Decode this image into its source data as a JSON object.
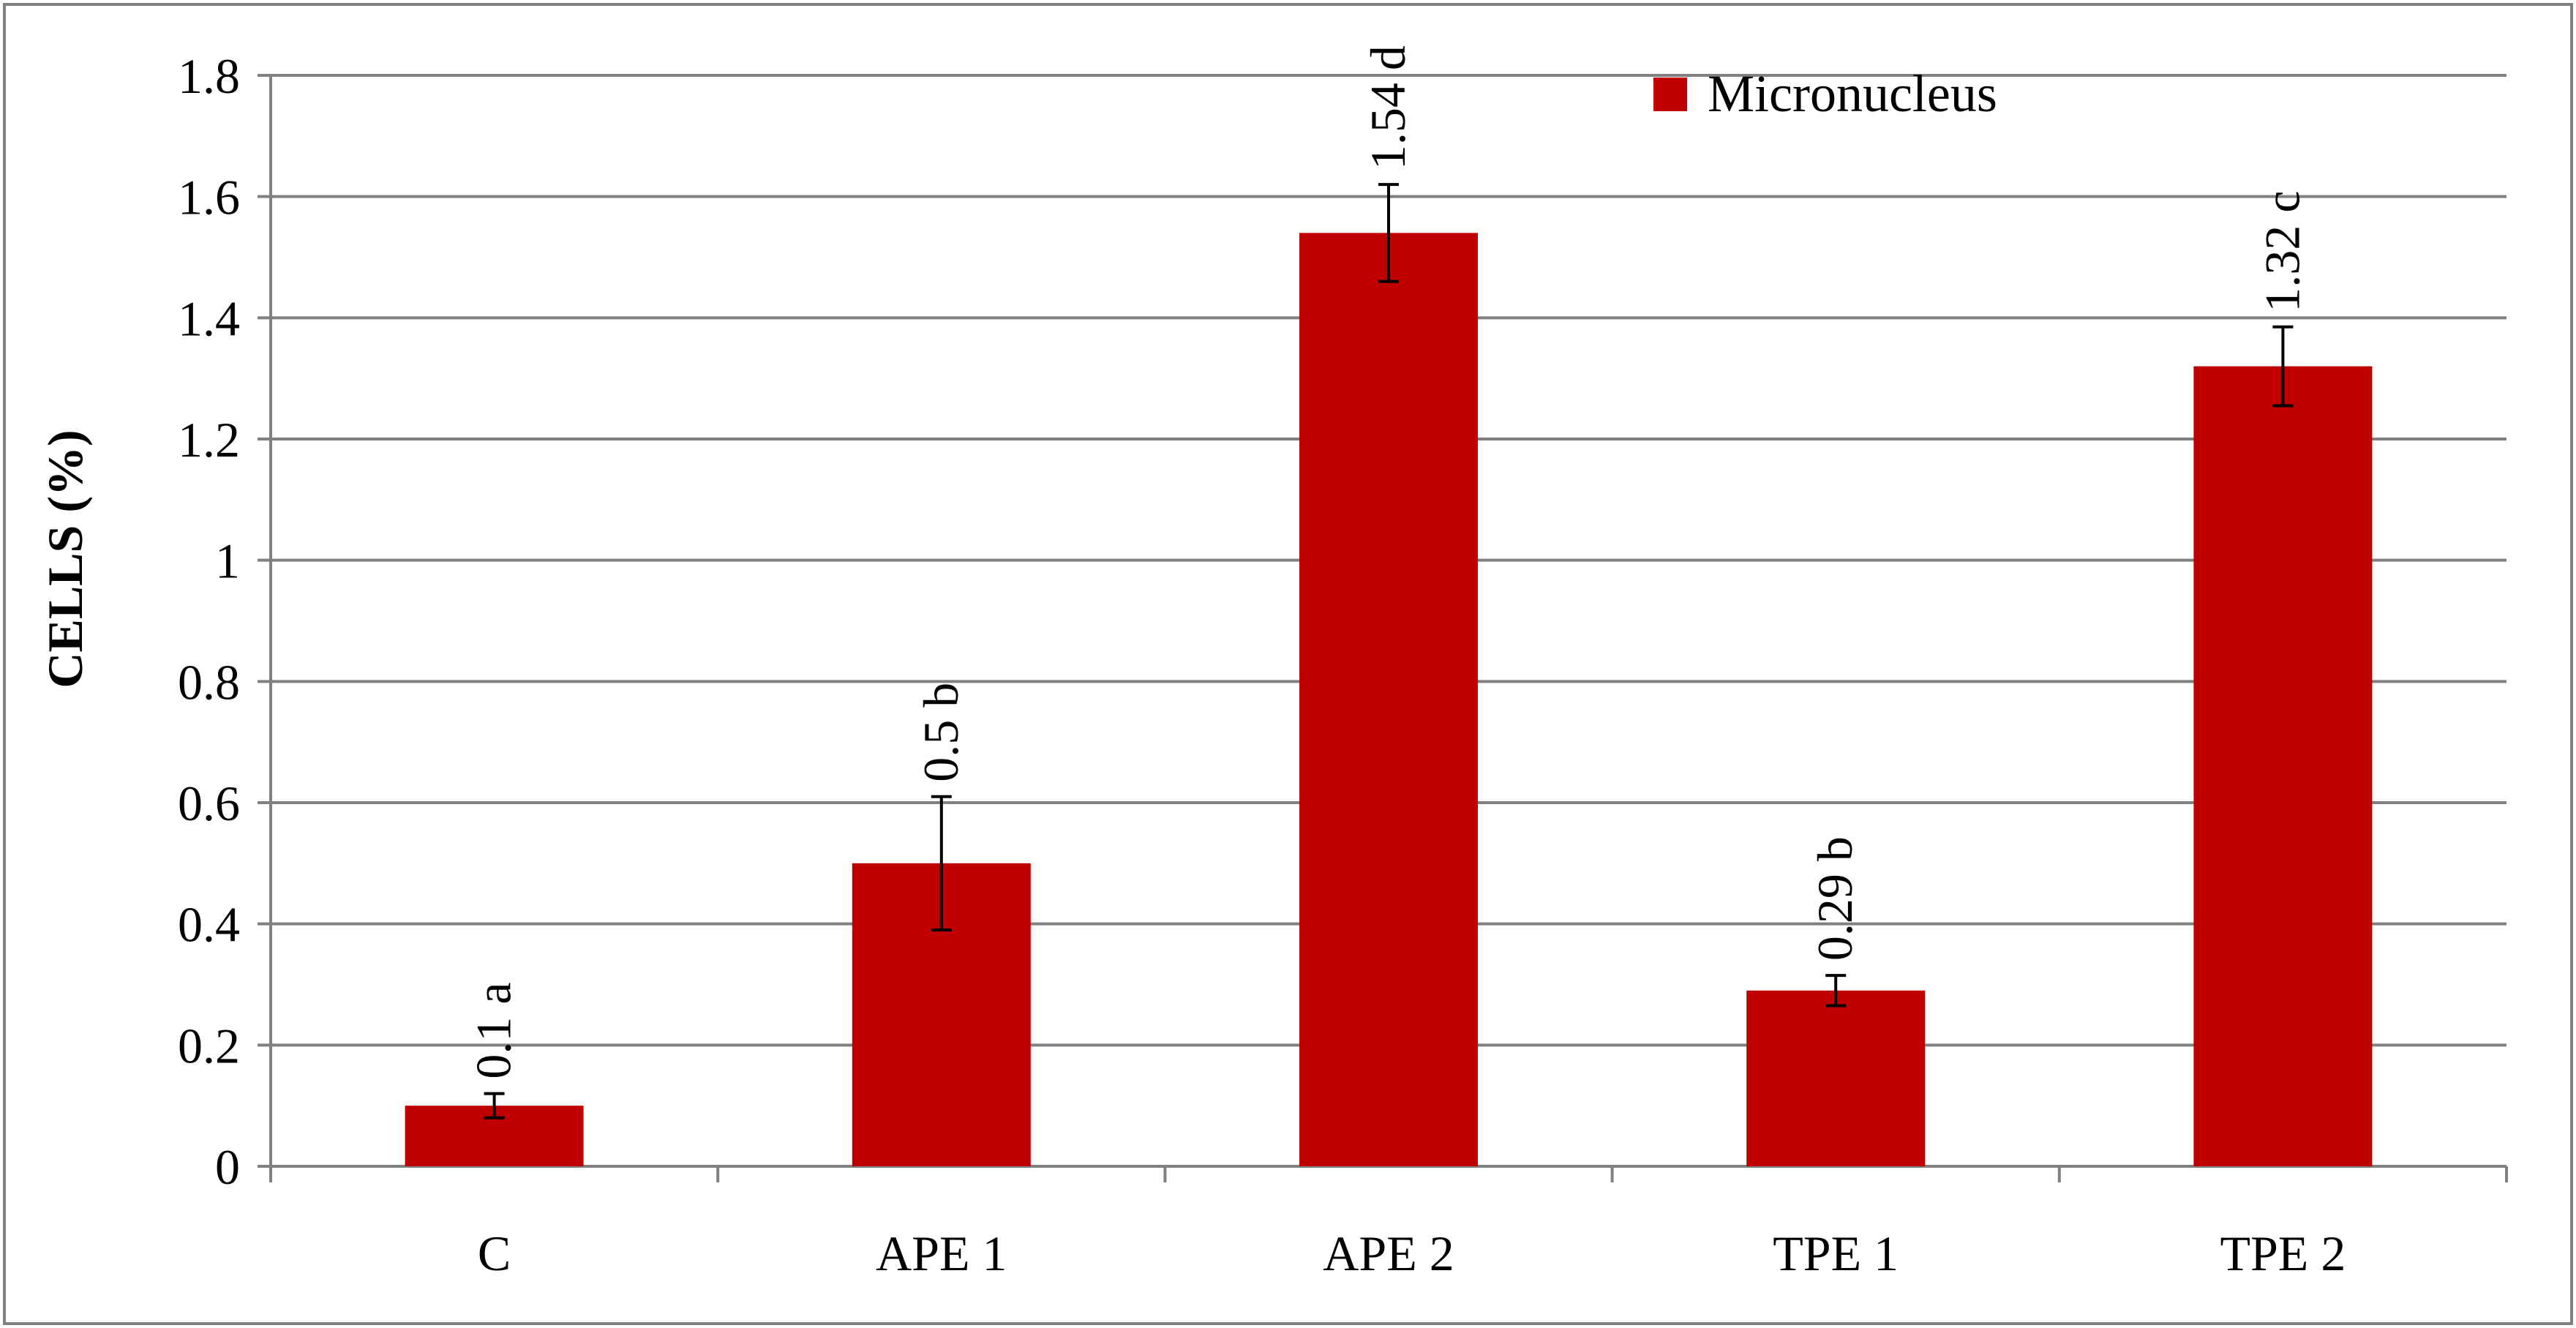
{
  "chart_data": {
    "type": "bar",
    "title": "",
    "xlabel": "",
    "ylabel": "CELLS (%)",
    "categories": [
      "C",
      "APE 1",
      "APE 2",
      "TPE 1",
      "TPE 2"
    ],
    "series": [
      {
        "name": "Micronucleus",
        "color": "#C00000",
        "values": [
          0.1,
          0.5,
          1.54,
          0.29,
          1.32
        ],
        "errors": [
          0.02,
          0.11,
          0.08,
          0.025,
          0.065
        ],
        "labels": [
          "0.1 a",
          "0.5 b",
          "1.54 d",
          "0.29 b",
          "1.32 c"
        ]
      }
    ],
    "ylim": [
      0,
      1.8
    ],
    "yticks": [
      "0",
      "0.2",
      "0.4",
      "0.6",
      "0.8",
      "1",
      "1.2",
      "1.4",
      "1.6",
      "1.8"
    ],
    "grid": true,
    "legend": "top-right",
    "colors": {
      "bar": "#C00000",
      "grid": "#808080",
      "axis": "#808080",
      "border": "#808080",
      "error_bar": "#000000"
    }
  }
}
